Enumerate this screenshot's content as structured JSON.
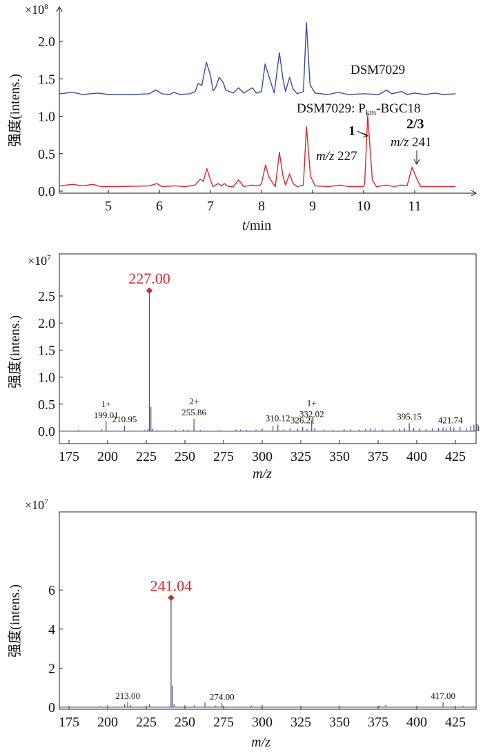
{
  "chart_data": [
    {
      "type": "line",
      "ylabel": "强度(intens.)",
      "xlabel_italic": "t",
      "xlabel_rest": "/min",
      "y_multiplier": "×10",
      "y_multiplier_exp": "8",
      "xlim": [
        4.04,
        11.9
      ],
      "ylim": [
        0,
        2.45
      ],
      "xticks": [
        5,
        6,
        7,
        8,
        9,
        10,
        11
      ],
      "yticks": [
        "0.0",
        "0.5",
        "1.0",
        "1.5",
        "2.0"
      ],
      "grid": false,
      "series": [
        {
          "name": "DSM7029",
          "color": "#3b4a9a",
          "points": [
            [
              4.05,
              1.3
            ],
            [
              4.3,
              1.32
            ],
            [
              4.5,
              1.29
            ],
            [
              4.8,
              1.31
            ],
            [
              5.0,
              1.29
            ],
            [
              5.5,
              1.29
            ],
            [
              5.8,
              1.3
            ],
            [
              5.93,
              1.35
            ],
            [
              6.05,
              1.3
            ],
            [
              6.2,
              1.29
            ],
            [
              6.28,
              1.32
            ],
            [
              6.4,
              1.29
            ],
            [
              6.6,
              1.3
            ],
            [
              6.7,
              1.33
            ],
            [
              6.76,
              1.44
            ],
            [
              6.83,
              1.41
            ],
            [
              6.92,
              1.72
            ],
            [
              7.0,
              1.55
            ],
            [
              7.05,
              1.34
            ],
            [
              7.1,
              1.38
            ],
            [
              7.17,
              1.52
            ],
            [
              7.25,
              1.45
            ],
            [
              7.3,
              1.35
            ],
            [
              7.45,
              1.31
            ],
            [
              7.55,
              1.38
            ],
            [
              7.65,
              1.31
            ],
            [
              7.82,
              1.38
            ],
            [
              7.9,
              1.31
            ],
            [
              8.0,
              1.33
            ],
            [
              8.07,
              1.7
            ],
            [
              8.15,
              1.52
            ],
            [
              8.25,
              1.31
            ],
            [
              8.35,
              1.85
            ],
            [
              8.42,
              1.5
            ],
            [
              8.47,
              1.33
            ],
            [
              8.55,
              1.52
            ],
            [
              8.62,
              1.36
            ],
            [
              8.7,
              1.3
            ],
            [
              8.82,
              1.33
            ],
            [
              8.88,
              2.25
            ],
            [
              8.95,
              1.42
            ],
            [
              9.05,
              1.31
            ],
            [
              9.3,
              1.29
            ],
            [
              9.5,
              1.32
            ],
            [
              9.7,
              1.29
            ],
            [
              10.0,
              1.3
            ],
            [
              10.3,
              1.29
            ],
            [
              10.45,
              1.35
            ],
            [
              10.55,
              1.3
            ],
            [
              10.75,
              1.33
            ],
            [
              10.85,
              1.29
            ],
            [
              11.0,
              1.31
            ],
            [
              11.2,
              1.29
            ],
            [
              11.4,
              1.31
            ],
            [
              11.55,
              1.29
            ],
            [
              11.8,
              1.3
            ]
          ]
        },
        {
          "name": "DSM7029: Pkm-BGC18",
          "color": "#e0242b",
          "points": [
            [
              4.05,
              0.07
            ],
            [
              4.3,
              0.09
            ],
            [
              4.5,
              0.07
            ],
            [
              4.7,
              0.09
            ],
            [
              4.85,
              0.06
            ],
            [
              5.2,
              0.06
            ],
            [
              5.8,
              0.07
            ],
            [
              5.95,
              0.1
            ],
            [
              6.05,
              0.06
            ],
            [
              6.3,
              0.07
            ],
            [
              6.5,
              0.06
            ],
            [
              6.7,
              0.08
            ],
            [
              6.8,
              0.16
            ],
            [
              6.86,
              0.13
            ],
            [
              6.93,
              0.3
            ],
            [
              7.0,
              0.15
            ],
            [
              7.05,
              0.06
            ],
            [
              7.15,
              0.1
            ],
            [
              7.22,
              0.07
            ],
            [
              7.27,
              0.1
            ],
            [
              7.35,
              0.06
            ],
            [
              7.45,
              0.06
            ],
            [
              7.55,
              0.15
            ],
            [
              7.65,
              0.06
            ],
            [
              7.8,
              0.08
            ],
            [
              7.95,
              0.07
            ],
            [
              8.0,
              0.1
            ],
            [
              8.08,
              0.35
            ],
            [
              8.15,
              0.18
            ],
            [
              8.27,
              0.06
            ],
            [
              8.35,
              0.52
            ],
            [
              8.42,
              0.2
            ],
            [
              8.47,
              0.08
            ],
            [
              8.55,
              0.23
            ],
            [
              8.62,
              0.1
            ],
            [
              8.7,
              0.06
            ],
            [
              8.82,
              0.08
            ],
            [
              8.88,
              0.86
            ],
            [
              8.96,
              0.2
            ],
            [
              9.05,
              0.07
            ],
            [
              9.3,
              0.06
            ],
            [
              9.55,
              0.08
            ],
            [
              9.7,
              0.06
            ],
            [
              10.0,
              0.06
            ],
            [
              10.02,
              0.1
            ],
            [
              10.08,
              1.02
            ],
            [
              10.17,
              0.15
            ],
            [
              10.25,
              0.06
            ],
            [
              10.45,
              0.08
            ],
            [
              10.6,
              0.06
            ],
            [
              10.75,
              0.08
            ],
            [
              10.85,
              0.07
            ],
            [
              10.95,
              0.32
            ],
            [
              11.05,
              0.15
            ],
            [
              11.12,
              0.06
            ],
            [
              11.4,
              0.06
            ],
            [
              11.8,
              0.06
            ]
          ]
        }
      ],
      "labels": {
        "series1": "DSM7029",
        "series2_pre": "DSM7029: P",
        "series2_sub": "km",
        "series2_post": "-BGC18",
        "peak1_number": "1",
        "peak1_mz_italic": "m/z",
        "peak1_mz_value": "227",
        "peak23_number": "2/3",
        "peak23_mz_italic": "m/z",
        "peak23_mz_value": "241"
      }
    },
    {
      "type": "bar",
      "ylabel": "强度(intens.)",
      "xlabel_italic": "m/z",
      "y_multiplier": "×10",
      "y_multiplier_exp": "7",
      "xlim": [
        169,
        441
      ],
      "ylim": [
        -0.25,
        3.0
      ],
      "xticks": [
        175,
        200,
        225,
        250,
        275,
        300,
        325,
        350,
        375,
        400,
        425
      ],
      "yticks": [
        "0.0",
        "0.5",
        "1.0",
        "1.5",
        "2.0",
        "2.5"
      ],
      "grid": false,
      "color": "#4a4a7a",
      "base_peak": {
        "mz": 227.0,
        "intensity": 2.6,
        "label": "227.00",
        "color": "#e0242b"
      },
      "peaks": [
        [
          181,
          0.02
        ],
        [
          183,
          0.015
        ],
        [
          196,
          0.03
        ],
        [
          199.01,
          0.18
        ],
        [
          210.95,
          0.1
        ],
        [
          224,
          0.02
        ],
        [
          226,
          0.04
        ],
        [
          227.0,
          2.6
        ],
        [
          228.0,
          0.45
        ],
        [
          229,
          0.05
        ],
        [
          232,
          0.02
        ],
        [
          244,
          0.02
        ],
        [
          249,
          0.03
        ],
        [
          252,
          0.03
        ],
        [
          255.86,
          0.23
        ],
        [
          260,
          0.02
        ],
        [
          272,
          0.02
        ],
        [
          283,
          0.03
        ],
        [
          286,
          0.03
        ],
        [
          290,
          0.02
        ],
        [
          296,
          0.03
        ],
        [
          300,
          0.05
        ],
        [
          307,
          0.1
        ],
        [
          310.12,
          0.12
        ],
        [
          314,
          0.03
        ],
        [
          318,
          0.06
        ],
        [
          323,
          0.04
        ],
        [
          326.21,
          0.08
        ],
        [
          329,
          0.04
        ],
        [
          332.02,
          0.2
        ],
        [
          334,
          0.06
        ],
        [
          340,
          0.03
        ],
        [
          346,
          0.02
        ],
        [
          353,
          0.04
        ],
        [
          357,
          0.03
        ],
        [
          363,
          0.03
        ],
        [
          367,
          0.05
        ],
        [
          370,
          0.05
        ],
        [
          373,
          0.05
        ],
        [
          378,
          0.03
        ],
        [
          385,
          0.03
        ],
        [
          389,
          0.05
        ],
        [
          392,
          0.06
        ],
        [
          395.15,
          0.15
        ],
        [
          398,
          0.06
        ],
        [
          402,
          0.05
        ],
        [
          406,
          0.04
        ],
        [
          410,
          0.05
        ],
        [
          414,
          0.06
        ],
        [
          417,
          0.07
        ],
        [
          419,
          0.06
        ],
        [
          421.74,
          0.08
        ],
        [
          424,
          0.07
        ],
        [
          428,
          0.08
        ],
        [
          432,
          0.06
        ],
        [
          435,
          0.1
        ],
        [
          437,
          0.12
        ],
        [
          439,
          0.14
        ],
        [
          440,
          0.1
        ]
      ],
      "annotations": [
        {
          "mz": 199.01,
          "intensity": 0.18,
          "charge": "1+",
          "label": "199.01"
        },
        {
          "mz": 210.95,
          "intensity": 0.1,
          "charge": "",
          "label": "210.95"
        },
        {
          "mz": 255.86,
          "intensity": 0.23,
          "charge": "2+",
          "label": "255.86"
        },
        {
          "mz": 310.12,
          "intensity": 0.12,
          "charge": "",
          "label": "310.12"
        },
        {
          "mz": 326.21,
          "intensity": 0.08,
          "charge": "",
          "label": "326.21"
        },
        {
          "mz": 332.02,
          "intensity": 0.2,
          "charge": "1+",
          "label": "332.02"
        },
        {
          "mz": 395.15,
          "intensity": 0.15,
          "charge": "",
          "label": "395.15"
        },
        {
          "mz": 421.74,
          "intensity": 0.08,
          "charge": "",
          "label": "421.74"
        }
      ]
    },
    {
      "type": "bar",
      "ylabel": "强度(intens.)",
      "xlabel_italic": "m/z",
      "y_multiplier": "×10",
      "y_multiplier_exp": "7",
      "xlim": [
        169,
        441
      ],
      "ylim": [
        0,
        10.3
      ],
      "xticks": [
        175,
        200,
        225,
        250,
        275,
        300,
        325,
        350,
        375,
        400,
        425
      ],
      "yticks": [
        "0",
        "2",
        "4",
        "6"
      ],
      "grid": false,
      "color": "#4a4a7a",
      "base_peak": {
        "mz": 241.04,
        "intensity": 5.6,
        "label": "241.04",
        "color": "#e0242b"
      },
      "peaks": [
        [
          175,
          0.08
        ],
        [
          195,
          0.05
        ],
        [
          200,
          0.1
        ],
        [
          211,
          0.15
        ],
        [
          213.0,
          0.25
        ],
        [
          215,
          0.1
        ],
        [
          227,
          0.15
        ],
        [
          241.04,
          5.6
        ],
        [
          242,
          1.1
        ],
        [
          243,
          0.15
        ],
        [
          250,
          0.1
        ],
        [
          256,
          0.1
        ],
        [
          263,
          0.25
        ],
        [
          270,
          0.08
        ],
        [
          274.0,
          0.2
        ],
        [
          293,
          0.08
        ],
        [
          300,
          0.1
        ],
        [
          325,
          0.08
        ],
        [
          350,
          0.08
        ],
        [
          376,
          0.08
        ],
        [
          380,
          0.12
        ],
        [
          400,
          0.08
        ],
        [
          417.0,
          0.25
        ],
        [
          425,
          0.08
        ],
        [
          430,
          0.06
        ]
      ],
      "annotations": [
        {
          "mz": 213.0,
          "intensity": 0.25,
          "charge": "",
          "label": "213.00"
        },
        {
          "mz": 274.0,
          "intensity": 0.2,
          "charge": "",
          "label": "274.00"
        },
        {
          "mz": 417.0,
          "intensity": 0.25,
          "charge": "",
          "label": "417.00"
        }
      ]
    }
  ]
}
